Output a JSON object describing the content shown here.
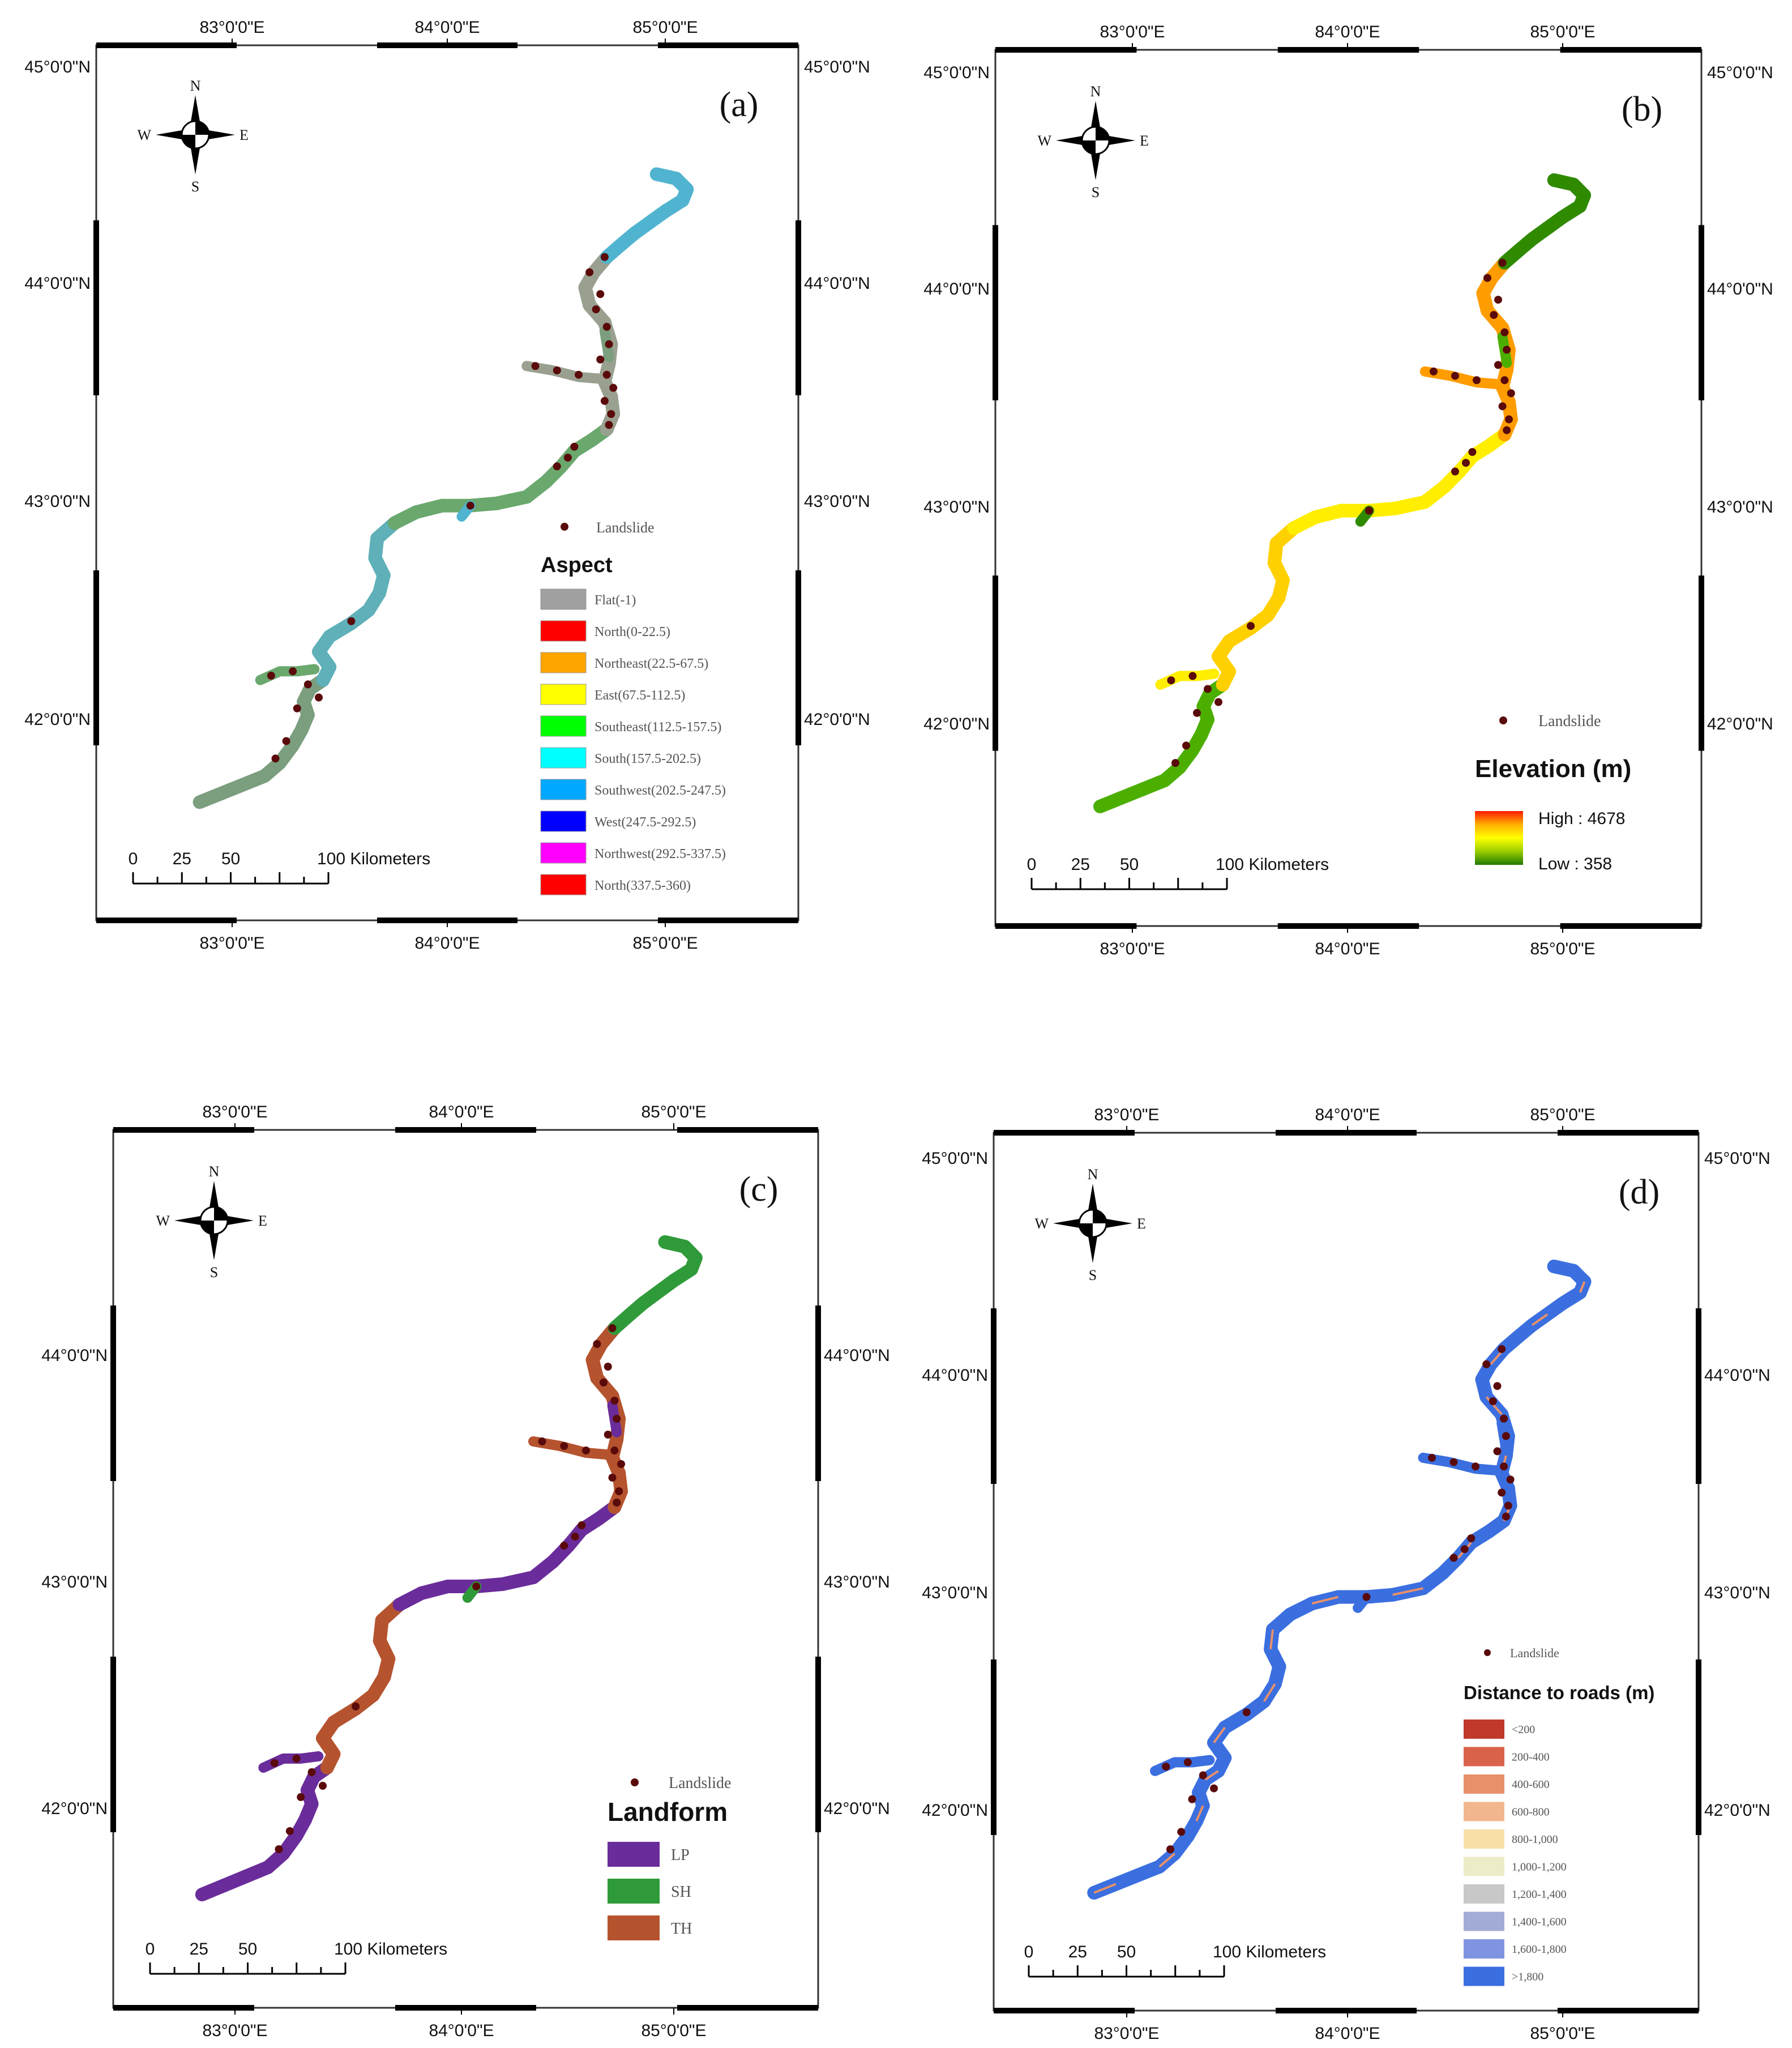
{
  "common": {
    "lon_labels": [
      "83°0'0\"E",
      "84°0'0\"E",
      "85°0'0\"E"
    ],
    "lat_labels": [
      "42°0'0\"N",
      "43°0'0\"N",
      "44°0'0\"N",
      "45°0'0\"N"
    ],
    "scale": {
      "zero": "0",
      "t25": "25",
      "t50": "50",
      "t100": "100 Kilometers"
    },
    "compass": {
      "n": "N",
      "s": "S",
      "e": "E",
      "w": "W"
    },
    "landslide_label": "Landslide",
    "route_lonlat": [
      [
        82.85,
        41.62
      ],
      [
        82.95,
        41.66
      ],
      [
        83.05,
        41.7
      ],
      [
        83.15,
        41.74
      ],
      [
        83.22,
        41.8
      ],
      [
        83.28,
        41.88
      ],
      [
        83.32,
        41.95
      ],
      [
        83.35,
        42.02
      ],
      [
        83.33,
        42.08
      ],
      [
        83.36,
        42.14
      ],
      [
        83.42,
        42.18
      ],
      [
        83.45,
        42.24
      ],
      [
        83.4,
        42.31
      ],
      [
        83.45,
        42.38
      ],
      [
        83.55,
        42.44
      ],
      [
        83.63,
        42.5
      ],
      [
        83.68,
        42.58
      ],
      [
        83.7,
        42.66
      ],
      [
        83.66,
        42.74
      ],
      [
        83.67,
        42.83
      ],
      [
        83.75,
        42.9
      ],
      [
        83.85,
        42.95
      ],
      [
        83.97,
        42.98
      ],
      [
        84.1,
        42.98
      ],
      [
        84.22,
        42.99
      ],
      [
        84.36,
        43.02
      ],
      [
        84.45,
        43.09
      ],
      [
        84.52,
        43.16
      ],
      [
        84.58,
        43.23
      ],
      [
        84.66,
        43.28
      ],
      [
        84.73,
        43.33
      ],
      [
        84.76,
        43.4
      ],
      [
        84.75,
        43.48
      ],
      [
        84.72,
        43.55
      ],
      [
        84.74,
        43.63
      ],
      [
        84.75,
        43.72
      ],
      [
        84.72,
        43.82
      ],
      [
        84.65,
        43.9
      ],
      [
        84.63,
        43.98
      ],
      [
        84.67,
        44.05
      ],
      [
        84.73,
        44.12
      ],
      [
        84.8,
        44.18
      ],
      [
        84.86,
        44.23
      ],
      [
        84.93,
        44.28
      ],
      [
        85.0,
        44.33
      ],
      [
        85.08,
        44.38
      ],
      [
        85.1,
        44.43
      ],
      [
        85.05,
        44.48
      ],
      [
        84.96,
        44.5
      ]
    ],
    "branches_lonlat": [
      [
        [
          83.13,
          42.18
        ],
        [
          83.22,
          42.22
        ],
        [
          83.3,
          42.22
        ],
        [
          83.38,
          42.23
        ]
      ],
      [
        [
          84.72,
          43.56
        ],
        [
          84.6,
          43.57
        ],
        [
          84.48,
          43.6
        ],
        [
          84.36,
          43.62
        ]
      ],
      [
        [
          84.1,
          42.98
        ],
        [
          84.06,
          42.93
        ]
      ],
      [
        [
          84.74,
          43.66
        ],
        [
          84.72,
          43.78
        ]
      ]
    ],
    "landslides_lonlat": [
      [
        84.72,
        44.12
      ],
      [
        84.65,
        44.05
      ],
      [
        84.7,
        43.95
      ],
      [
        84.68,
        43.88
      ],
      [
        84.73,
        43.8
      ],
      [
        84.74,
        43.72
      ],
      [
        84.7,
        43.65
      ],
      [
        84.73,
        43.58
      ],
      [
        84.76,
        43.52
      ],
      [
        84.72,
        43.46
      ],
      [
        84.75,
        43.4
      ],
      [
        84.74,
        43.35
      ],
      [
        84.6,
        43.58
      ],
      [
        84.5,
        43.6
      ],
      [
        84.4,
        43.62
      ],
      [
        84.58,
        43.25
      ],
      [
        84.55,
        43.2
      ],
      [
        84.5,
        43.16
      ],
      [
        84.1,
        42.98
      ],
      [
        83.18,
        42.2
      ],
      [
        83.28,
        42.22
      ],
      [
        83.35,
        42.16
      ],
      [
        83.4,
        42.1
      ],
      [
        83.3,
        42.05
      ],
      [
        83.25,
        41.9
      ],
      [
        83.2,
        41.82
      ],
      [
        83.55,
        42.45
      ]
    ]
  },
  "panels": [
    {
      "id": "a",
      "panel_label": "(a)",
      "legend": {
        "title": "Aspect",
        "items": [
          {
            "label": "Flat(-1)",
            "color": "#a0a0a0"
          },
          {
            "label": "North(0-22.5)",
            "color": "#ff0000"
          },
          {
            "label": "Northeast(22.5-67.5)",
            "color": "#ffa500"
          },
          {
            "label": "East(67.5-112.5)",
            "color": "#ffff00"
          },
          {
            "label": "Southeast(112.5-157.5)",
            "color": "#00ff00"
          },
          {
            "label": "South(157.5-202.5)",
            "color": "#00ffff"
          },
          {
            "label": "Southwest(202.5-247.5)",
            "color": "#00a8ff"
          },
          {
            "label": "West(247.5-292.5)",
            "color": "#0000ff"
          },
          {
            "label": "Northwest(292.5-337.5)",
            "color": "#ff00ff"
          },
          {
            "label": "North(337.5-360)",
            "color": "#ff0000"
          }
        ]
      },
      "route_colors": [
        "#7a9e7e",
        "#5fb0b8",
        "#6aa86e",
        "#9aa090",
        "#50b4d0"
      ]
    },
    {
      "id": "b",
      "panel_label": "(b)",
      "legend": {
        "title": "Elevation (m)",
        "high_label": "High : 4678",
        "low_label": "Low : 358",
        "ramp": [
          "#ff1a00",
          "#ffb000",
          "#ffff00",
          "#9acd00",
          "#1f7a00"
        ]
      },
      "route_colors": [
        "#4caf00",
        "#ffd000",
        "#ffee00",
        "#ff9c00",
        "#2f8a00"
      ]
    },
    {
      "id": "c",
      "panel_label": "(c)",
      "legend": {
        "title": "Landform",
        "items": [
          {
            "label": "LP",
            "color": "#6a2c9a"
          },
          {
            "label": "SH",
            "color": "#2f9a3a"
          },
          {
            "label": "TH",
            "color": "#b5532f"
          }
        ]
      },
      "route_colors": [
        "#6a2c9a",
        "#b5532f",
        "#6a2c9a",
        "#b5532f",
        "#2f9a3a"
      ]
    },
    {
      "id": "d",
      "panel_label": "(d)",
      "legend": {
        "title": "Distance to roads (m)",
        "items": [
          {
            "label": "<200",
            "color": "#c0392b"
          },
          {
            "label": "200-400",
            "color": "#d9634a"
          },
          {
            "label": "400-600",
            "color": "#e8906a"
          },
          {
            "label": "600-800",
            "color": "#f2b78f"
          },
          {
            "label": "800-1,000",
            "color": "#f7e0a8"
          },
          {
            "label": "1,000-1,200",
            "color": "#ececc8"
          },
          {
            "label": "1,200-1,400",
            "color": "#c8c8c8"
          },
          {
            "label": "1,400-1,600",
            "color": "#a3acd6"
          },
          {
            "label": "1,600-1,800",
            "color": "#7f94e0"
          },
          {
            "label": ">1,800",
            "color": "#3b6fe0"
          }
        ]
      },
      "route_colors": [
        "#3b6fe0",
        "#3b6fe0",
        "#3b6fe0",
        "#3b6fe0",
        "#3b6fe0"
      ]
    }
  ]
}
